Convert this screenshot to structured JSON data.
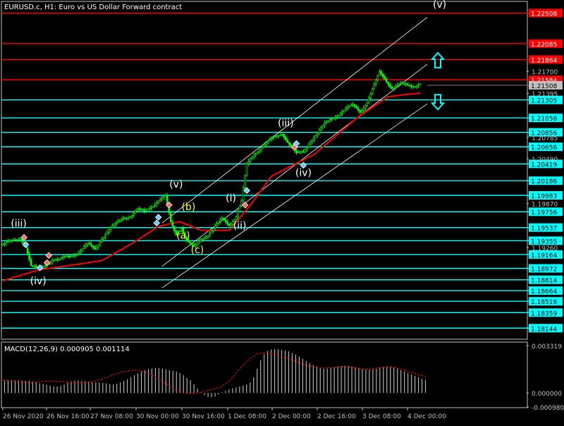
{
  "header": {
    "title": "EURUSD.c, H1:  Euro vs US Dollar Forward contract"
  },
  "indicator": {
    "label": "MACD(12,26,9) 0.000905 0.001114"
  },
  "colors": {
    "background": "#000000",
    "axis": "#c0c0c0",
    "candle": "#00ff00",
    "moving_average": "#ff0000",
    "support_line": "#00ffff",
    "resistance_line": "#ff0000",
    "channel": "#ffffff",
    "wave_white": "#ffffff",
    "wave_yellow": "#ffff00",
    "macd_hist": "#c0c0c0",
    "macd_signal": "#ff0000",
    "arrow": "#00ffff"
  },
  "chart_data": [
    {
      "type": "line",
      "symbol": "EURUSD.c",
      "timeframe": "H1",
      "ylim": [
        1.18,
        1.2265
      ],
      "x_tick_labels": [
        "26 Nov 2020",
        "26 Nov 16:00",
        "27 Nov 08:00",
        "30 Nov 00:00",
        "30 Nov 16:00",
        "1 Dec 08:00",
        "2 Dec 00:00",
        "2 Dec 16:00",
        "3 Dec 08:00",
        "4 Dec 00:00"
      ],
      "price_axis_labels": [
        "1.21700",
        "1.21395",
        "1.20785",
        "1.20490",
        "1.19870",
        "1.19260"
      ],
      "current_price": "1.21508",
      "price_series": [
        {
          "x": 0,
          "y": 1.193
        },
        {
          "x": 5,
          "y": 1.1934
        },
        {
          "x": 10,
          "y": 1.194
        },
        {
          "x": 13,
          "y": 1.1928
        },
        {
          "x": 16,
          "y": 1.19
        },
        {
          "x": 20,
          "y": 1.1895
        },
        {
          "x": 24,
          "y": 1.1903
        },
        {
          "x": 28,
          "y": 1.191
        },
        {
          "x": 32,
          "y": 1.1908
        },
        {
          "x": 36,
          "y": 1.1913
        },
        {
          "x": 40,
          "y": 1.1917
        },
        {
          "x": 44,
          "y": 1.1922
        },
        {
          "x": 48,
          "y": 1.193
        },
        {
          "x": 52,
          "y": 1.1924
        },
        {
          "x": 56,
          "y": 1.194
        },
        {
          "x": 60,
          "y": 1.195
        },
        {
          "x": 64,
          "y": 1.1958
        },
        {
          "x": 68,
          "y": 1.1968
        },
        {
          "x": 72,
          "y": 1.197
        },
        {
          "x": 76,
          "y": 1.1978
        },
        {
          "x": 80,
          "y": 1.1975
        },
        {
          "x": 84,
          "y": 1.1984
        },
        {
          "x": 88,
          "y": 1.1992
        },
        {
          "x": 92,
          "y": 1.1996
        },
        {
          "x": 95,
          "y": 1.196
        },
        {
          "x": 98,
          "y": 1.1945
        },
        {
          "x": 101,
          "y": 1.1955
        },
        {
          "x": 104,
          "y": 1.1935
        },
        {
          "x": 108,
          "y": 1.1925
        },
        {
          "x": 112,
          "y": 1.1938
        },
        {
          "x": 116,
          "y": 1.1945
        },
        {
          "x": 120,
          "y": 1.1955
        },
        {
          "x": 124,
          "y": 1.1965
        },
        {
          "x": 128,
          "y": 1.1958
        },
        {
          "x": 132,
          "y": 1.197
        },
        {
          "x": 135,
          "y": 1.199
        },
        {
          "x": 138,
          "y": 1.204
        },
        {
          "x": 142,
          "y": 1.2055
        },
        {
          "x": 146,
          "y": 1.2066
        },
        {
          "x": 150,
          "y": 1.2072
        },
        {
          "x": 154,
          "y": 1.2078
        },
        {
          "x": 158,
          "y": 1.2085
        },
        {
          "x": 162,
          "y": 1.207
        },
        {
          "x": 166,
          "y": 1.2055
        },
        {
          "x": 170,
          "y": 1.2058
        },
        {
          "x": 174,
          "y": 1.2075
        },
        {
          "x": 178,
          "y": 1.2085
        },
        {
          "x": 182,
          "y": 1.2096
        },
        {
          "x": 186,
          "y": 1.2105
        },
        {
          "x": 190,
          "y": 1.2112
        },
        {
          "x": 194,
          "y": 1.2118
        },
        {
          "x": 198,
          "y": 1.2122
        },
        {
          "x": 202,
          "y": 1.2115
        },
        {
          "x": 206,
          "y": 1.2128
        },
        {
          "x": 210,
          "y": 1.215
        },
        {
          "x": 213,
          "y": 1.2168
        },
        {
          "x": 216,
          "y": 1.216
        },
        {
          "x": 220,
          "y": 1.2148
        },
        {
          "x": 224,
          "y": 1.2152
        },
        {
          "x": 228,
          "y": 1.215
        },
        {
          "x": 232,
          "y": 1.215
        },
        {
          "x": 236,
          "y": 1.2154
        }
      ],
      "moving_average": [
        {
          "x": 0,
          "y": 1.188
        },
        {
          "x": 20,
          "y": 1.1895
        },
        {
          "x": 40,
          "y": 1.1902
        },
        {
          "x": 56,
          "y": 1.1908
        },
        {
          "x": 72,
          "y": 1.193
        },
        {
          "x": 88,
          "y": 1.1955
        },
        {
          "x": 100,
          "y": 1.1962
        },
        {
          "x": 112,
          "y": 1.195
        },
        {
          "x": 128,
          "y": 1.195
        },
        {
          "x": 140,
          "y": 1.1985
        },
        {
          "x": 152,
          "y": 1.2025
        },
        {
          "x": 164,
          "y": 1.204
        },
        {
          "x": 176,
          "y": 1.2055
        },
        {
          "x": 188,
          "y": 1.208
        },
        {
          "x": 200,
          "y": 1.2105
        },
        {
          "x": 210,
          "y": 1.2122
        },
        {
          "x": 218,
          "y": 1.2135
        },
        {
          "x": 228,
          "y": 1.2138
        },
        {
          "x": 236,
          "y": 1.214
        }
      ],
      "support_levels": [
        {
          "price": 1.21305,
          "label": "1.21305"
        },
        {
          "price": 1.21056,
          "label": "1.21056"
        },
        {
          "price": 1.20856,
          "label": "1.20856"
        },
        {
          "price": 1.20656,
          "label": "1.20656"
        },
        {
          "price": 1.20419,
          "label": "1.20419"
        },
        {
          "price": 1.20186,
          "label": "1.20186"
        },
        {
          "price": 1.19983,
          "label": "1.19983"
        },
        {
          "price": 1.19756,
          "label": "1.19756"
        },
        {
          "price": 1.19537,
          "label": "1.19537"
        },
        {
          "price": 1.19355,
          "label": "1.19355"
        },
        {
          "price": 1.19164,
          "label": "1.19164"
        },
        {
          "price": 1.18972,
          "label": "1.18972"
        },
        {
          "price": 1.18814,
          "label": "1.18814"
        },
        {
          "price": 1.18664,
          "label": "1.18664"
        },
        {
          "price": 1.18516,
          "label": "1.18516"
        },
        {
          "price": 1.18359,
          "label": "1.18359"
        },
        {
          "price": 1.18144,
          "label": "1.18144"
        }
      ],
      "resistance_levels": [
        {
          "price": 1.22508,
          "label": "1.22508"
        },
        {
          "price": 1.22085,
          "label": "1.22085"
        },
        {
          "price": 1.21864,
          "label": "1.21864"
        },
        {
          "price": 1.21584,
          "label": "1.21584"
        }
      ],
      "channel_lines": [
        {
          "x1": 90,
          "y1": 1.196,
          "x2": 240,
          "y2": 1.2245
        },
        {
          "x1": 90,
          "y1": 1.19,
          "x2": 240,
          "y2": 1.218
        },
        {
          "x1": 90,
          "y1": 1.187,
          "x2": 240,
          "y2": 1.2125
        }
      ],
      "wave_labels": [
        {
          "text": "(iii)",
          "x": 9,
          "y": 1.1955,
          "color": "white"
        },
        {
          "text": "(iv)",
          "x": 20,
          "y": 1.1875,
          "color": "white"
        },
        {
          "text": "(v)",
          "x": 98,
          "y": 1.2009,
          "color": "white"
        },
        {
          "text": "(b)",
          "x": 105,
          "y": 1.1978,
          "color": "yellow"
        },
        {
          "text": "(a)",
          "x": 102,
          "y": 1.1938,
          "color": "yellow"
        },
        {
          "text": "(c)",
          "x": 110,
          "y": 1.1918,
          "color": "yellow"
        },
        {
          "text": "(i)",
          "x": 129,
          "y": 1.199,
          "color": "white"
        },
        {
          "text": "(ii)",
          "x": 134,
          "y": 1.1952,
          "color": "white"
        },
        {
          "text": "(iii)",
          "x": 160,
          "y": 1.2094,
          "color": "white"
        },
        {
          "text": "(iv)",
          "x": 170,
          "y": 1.2025,
          "color": "white"
        },
        {
          "text": "(v)",
          "x": 247,
          "y": 1.2258,
          "color": "white"
        }
      ],
      "markers": [
        {
          "x": 12,
          "y": 1.194,
          "kind": "sell"
        },
        {
          "x": 13,
          "y": 1.193,
          "kind": "buy"
        },
        {
          "x": 21,
          "y": 1.1898,
          "kind": "buy"
        },
        {
          "x": 25,
          "y": 1.1905,
          "kind": "sell"
        },
        {
          "x": 26,
          "y": 1.1915,
          "kind": "sell"
        },
        {
          "x": 87,
          "y": 1.196,
          "kind": "buy"
        },
        {
          "x": 88,
          "y": 1.1968,
          "kind": "buy"
        },
        {
          "x": 94,
          "y": 1.1985,
          "kind": "sell"
        },
        {
          "x": 137,
          "y": 1.1985,
          "kind": "sell"
        },
        {
          "x": 138,
          "y": 1.2005,
          "kind": "buy"
        },
        {
          "x": 165,
          "y": 1.2065,
          "kind": "sell"
        },
        {
          "x": 166,
          "y": 1.207,
          "kind": "buy"
        },
        {
          "x": 170,
          "y": 1.204,
          "kind": "buy"
        }
      ],
      "arrows": [
        {
          "direction": "up",
          "x": 246,
          "y": 1.2185
        },
        {
          "direction": "down",
          "x": 246,
          "y": 1.2128
        }
      ]
    },
    {
      "type": "bar",
      "name": "MACD(12,26,9)",
      "ylim": [
        -0.00098,
        0.00332
      ],
      "axis_labels": [
        "0.003319",
        "0.000000",
        "-0.000980"
      ],
      "histogram": [
        0.00089,
        0.00089,
        0.00089,
        0.00089,
        0.00088,
        0.00087,
        0.00086,
        0.00085,
        0.0008,
        0.00075,
        0.00068,
        0.00062,
        0.00058,
        0.00052,
        0.00046,
        0.00045,
        0.00049,
        0.00058,
        0.00072,
        0.00082,
        0.00087,
        0.00087,
        0.00085,
        0.00083,
        0.0008,
        0.00076,
        0.00073,
        0.00072,
        0.0007,
        0.00068,
        0.00062,
        0.0006,
        0.00065,
        0.00074,
        0.00085,
        0.00097,
        0.0011,
        0.00125,
        0.00138,
        0.0015,
        0.0016,
        0.00168,
        0.00172,
        0.00175,
        0.00175,
        0.0017,
        0.00165,
        0.0016,
        0.00155,
        0.0015,
        0.0014,
        0.00125,
        0.00105,
        0.0009,
        0.0006,
        0.0003,
        5e-05,
        -0.00015,
        -0.00027,
        -0.0003,
        -0.00025,
        -0.0001,
        5e-05,
        0.00015,
        0.00025,
        0.00032,
        0.00038,
        0.00045,
        0.00052,
        0.0006,
        0.00075,
        0.0011,
        0.0017,
        0.0023,
        0.0027,
        0.00295,
        0.00305,
        0.00308,
        0.00306,
        0.00302,
        0.00298,
        0.00292,
        0.0028,
        0.0027,
        0.00255,
        0.0024,
        0.00225,
        0.0021,
        0.00195,
        0.00185,
        0.00175,
        0.0017,
        0.00172,
        0.00175,
        0.0018,
        0.00185,
        0.00188,
        0.0019,
        0.0019,
        0.00186,
        0.0018,
        0.00175,
        0.0017,
        0.00165,
        0.00162,
        0.00165,
        0.0017,
        0.00178,
        0.00184,
        0.00186,
        0.00185,
        0.0018,
        0.00172,
        0.0016,
        0.0015,
        0.0014,
        0.0013,
        0.0012,
        0.0011,
        0.001,
        0.00092
      ],
      "signal": [
        0.0009,
        0.00084,
        0.00076,
        0.00072,
        0.0008,
        0.00084,
        0.00082,
        0.00076,
        0.0007,
        0.00072,
        0.00086,
        0.0011,
        0.00135,
        0.00152,
        0.0016,
        0.0015,
        0.0012,
        0.0008,
        0.0003,
        2e-05,
        -4e-05,
        6e-05,
        0.00022,
        0.0004,
        0.0008,
        0.0016,
        0.0023,
        0.00276,
        0.00282,
        0.00268,
        0.00248,
        0.00222,
        0.00198,
        0.0018,
        0.00174,
        0.0018,
        0.00186,
        0.0018,
        0.00168,
        0.00166,
        0.00178,
        0.00184,
        0.00172,
        0.0015,
        0.0013,
        0.00111
      ]
    }
  ]
}
